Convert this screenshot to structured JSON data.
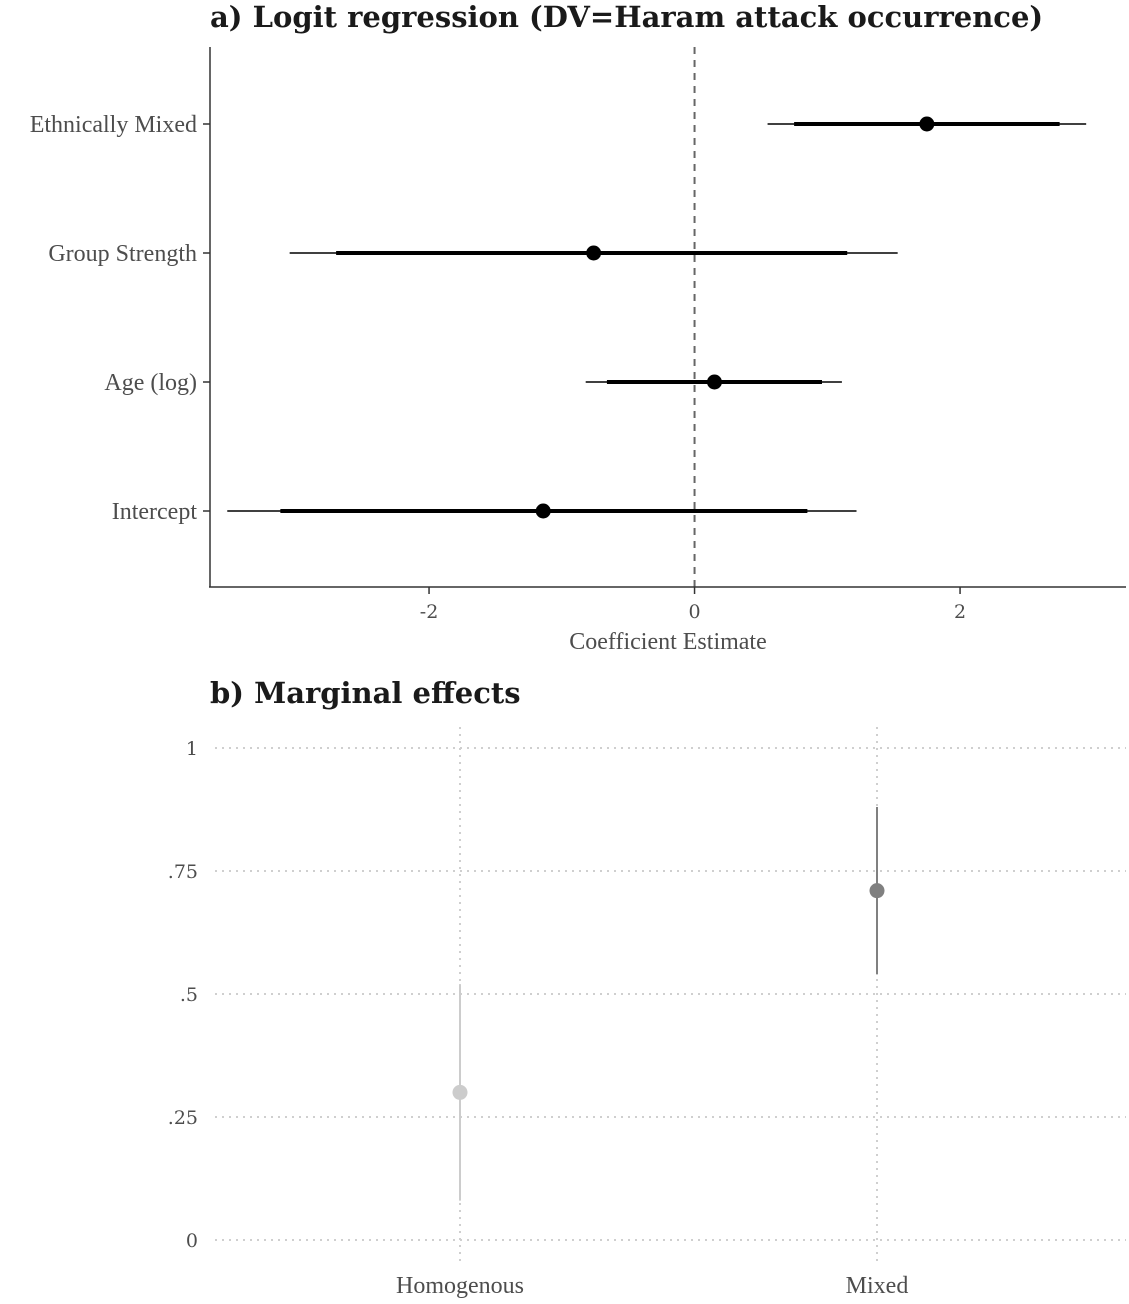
{
  "chart_data": [
    {
      "type": "coefficient-plot",
      "title": "a) Logit regression (DV=Haram attack occurrence)",
      "xlabel": "Coefficient Estimate",
      "ylabel": "",
      "xlim": [
        -3.65,
        3.25
      ],
      "xticks": [
        {
          "value": -2,
          "label": "-2"
        },
        {
          "value": 0,
          "label": "0"
        },
        {
          "value": 2,
          "label": "2"
        }
      ],
      "reference_line": 0,
      "terms": [
        {
          "label": "Ethnically Mixed",
          "estimate": 1.75,
          "ci_inner": [
            0.75,
            2.75
          ],
          "ci_outer": [
            0.55,
            2.95
          ]
        },
        {
          "label": "Group Strength",
          "estimate": -0.76,
          "ci_inner": [
            -2.7,
            1.15
          ],
          "ci_outer": [
            -3.05,
            1.53
          ]
        },
        {
          "label": "Age (log)",
          "estimate": 0.15,
          "ci_inner": [
            -0.66,
            0.96
          ],
          "ci_outer": [
            -0.82,
            1.11
          ]
        },
        {
          "label": "Intercept",
          "estimate": -1.14,
          "ci_inner": [
            -3.12,
            0.85
          ],
          "ci_outer": [
            -3.52,
            1.22
          ]
        }
      ],
      "colors": {
        "point": "#000000",
        "axis": "#333333",
        "reference": "#666666"
      }
    },
    {
      "type": "point-range",
      "title": "b) Marginal effects",
      "xlabel": "",
      "ylabel": "",
      "ylim": [
        0,
        1
      ],
      "yticks": [
        {
          "value": 0,
          "label": "0"
        },
        {
          "value": 0.25,
          "label": ".25"
        },
        {
          "value": 0.5,
          "label": ".5"
        },
        {
          "value": 0.75,
          "label": ".75"
        },
        {
          "value": 1,
          "label": "1"
        }
      ],
      "categories": [
        "Homogenous",
        "Mixed"
      ],
      "points": [
        {
          "category": "Homogenous",
          "estimate": 0.3,
          "ci": [
            0.08,
            0.52
          ],
          "color": "#cccccc"
        },
        {
          "category": "Mixed",
          "estimate": 0.71,
          "ci": [
            0.54,
            0.88
          ],
          "color": "#808080"
        }
      ],
      "grid": "dotted",
      "colors": {
        "grid": "#cfcfcf"
      }
    }
  ]
}
